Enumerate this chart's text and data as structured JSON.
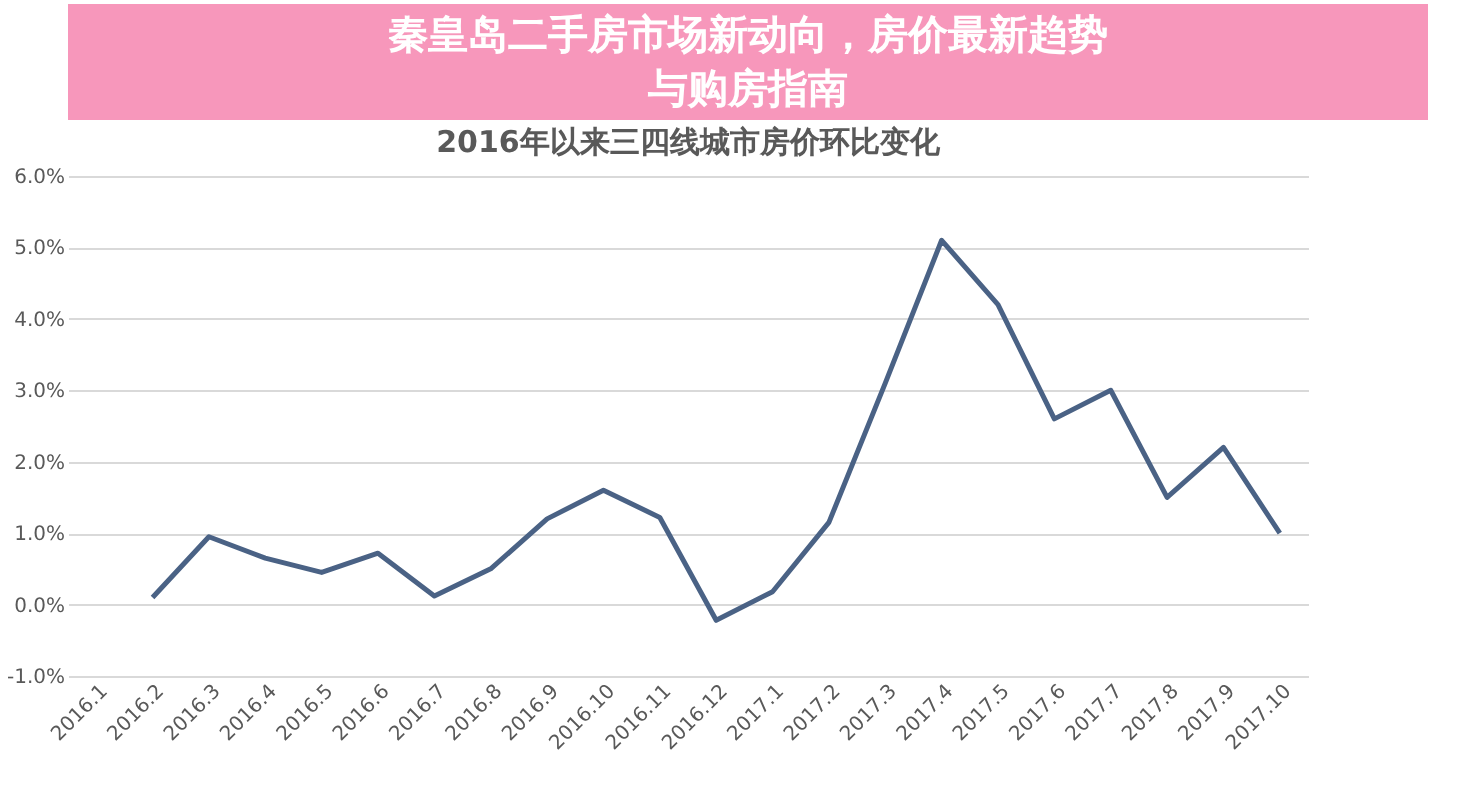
{
  "chart_data": {
    "type": "line",
    "title": "2016年以来三四线城市房价环比变化",
    "annotations": [
      "秦皇岛二手房市场新动向，房价最新趋势",
      "与购房指南"
    ],
    "categories": [
      "2016.1",
      "2016.2",
      "2016.3",
      "2016.4",
      "2016.5",
      "2016.6",
      "2016.7",
      "2016.8",
      "2016.9",
      "2016.10",
      "2016.11",
      "2016.12",
      "2017.1",
      "2017.2",
      "2017.3",
      "2017.4",
      "2017.5",
      "2017.6",
      "2017.7",
      "2017.8",
      "2017.9",
      "2017.10"
    ],
    "series": [
      {
        "color": "#4a6285",
        "values": [
          null,
          0.1,
          0.95,
          0.65,
          0.45,
          0.72,
          0.12,
          0.5,
          1.2,
          1.6,
          1.22,
          -0.22,
          0.18,
          1.15,
          3.1,
          5.1,
          4.2,
          2.6,
          3.0,
          1.5,
          2.2,
          1.0
        ]
      }
    ],
    "ylim": [
      -1,
      6
    ],
    "yticks": [
      {
        "value": -1,
        "label": "-1.0%"
      },
      {
        "value": 0,
        "label": "0.0%"
      },
      {
        "value": 1,
        "label": "1.0%"
      },
      {
        "value": 2,
        "label": "2.0%"
      },
      {
        "value": 3,
        "label": "3.0%"
      },
      {
        "value": 4,
        "label": "4.0%"
      },
      {
        "value": 5,
        "label": "5.0%"
      },
      {
        "value": 6,
        "label": "6.0%"
      }
    ],
    "grid": "y",
    "legend": false,
    "marker": "none",
    "line_style": "solid"
  }
}
